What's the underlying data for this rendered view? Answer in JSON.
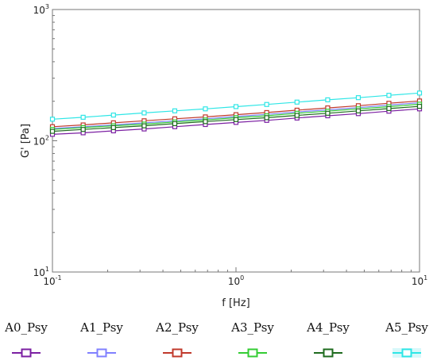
{
  "chart_data": {
    "type": "line",
    "x_scale": "log",
    "y_scale": "log",
    "xlim": [
      0.1,
      10
    ],
    "ylim": [
      10,
      1000
    ],
    "xlabel": "f [Hz]",
    "ylabel": "G' [Pa]",
    "x_ticks": [
      {
        "value": 0.1,
        "base": "10",
        "exp": "-1"
      },
      {
        "value": 1,
        "base": "10",
        "exp": "0"
      },
      {
        "value": 10,
        "base": "10",
        "exp": "1"
      }
    ],
    "y_ticks": [
      {
        "value": 10,
        "base": "10",
        "exp": "1"
      },
      {
        "value": 100,
        "base": "10",
        "exp": "2"
      },
      {
        "value": 1000,
        "base": "10",
        "exp": "3"
      }
    ],
    "grid": false,
    "legend_position": "bottom",
    "x": [
      0.1,
      0.147,
      0.215,
      0.316,
      0.464,
      0.681,
      1.0,
      1.47,
      2.15,
      3.16,
      4.64,
      6.81,
      10.0
    ],
    "series": [
      {
        "name": "A0_Psy",
        "color": "#7b1fa2",
        "values": [
          112,
          115,
          119,
          123,
          128,
          133,
          138,
          143,
          149,
          155,
          161,
          168,
          175
        ]
      },
      {
        "name": "A1_Psy",
        "color": "#8080ff",
        "values": [
          124,
          128,
          132,
          137,
          142,
          147,
          153,
          159,
          166,
          172,
          179,
          187,
          195
        ]
      },
      {
        "name": "A2_Psy",
        "color": "#c0392b",
        "values": [
          128,
          132,
          137,
          142,
          147,
          152,
          158,
          164,
          171,
          178,
          185,
          193,
          201
        ]
      },
      {
        "name": "A3_Psy",
        "color": "#33cc33",
        "values": [
          122,
          126,
          130,
          134,
          139,
          144,
          150,
          155,
          162,
          168,
          175,
          182,
          190
        ]
      },
      {
        "name": "A4_Psy",
        "color": "#1e6b1e",
        "values": [
          118,
          122,
          126,
          130,
          135,
          140,
          145,
          150,
          156,
          162,
          169,
          176,
          183
        ]
      },
      {
        "name": "A5_Psy",
        "color": "#2ee6e6",
        "values": [
          146,
          151,
          157,
          163,
          169,
          175,
          182,
          189,
          197,
          205,
          213,
          222,
          231
        ]
      }
    ]
  }
}
